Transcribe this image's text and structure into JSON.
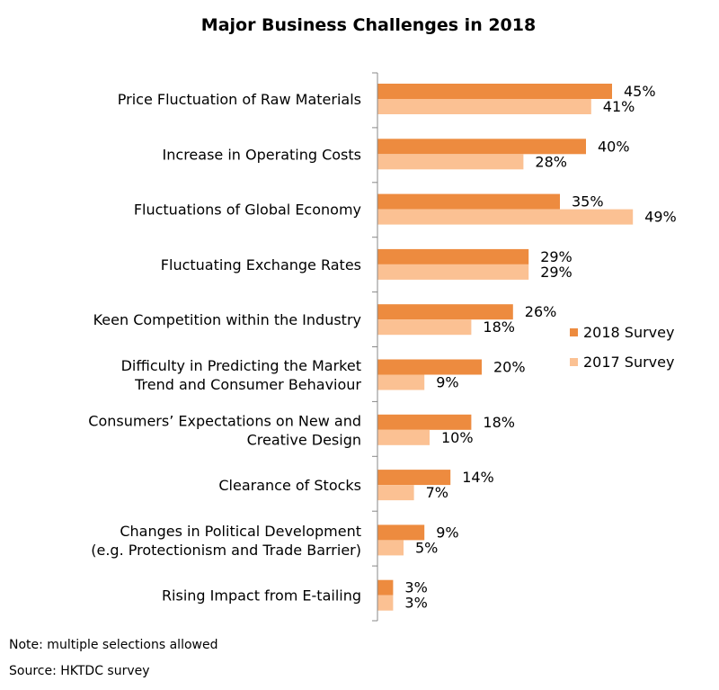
{
  "chart_data": {
    "type": "bar",
    "orientation": "horizontal",
    "title": "Major Business Challenges in 2018",
    "categories": [
      [
        "Price Fluctuation of Raw Materials"
      ],
      [
        "Increase in Operating Costs"
      ],
      [
        "Fluctuations of Global Economy"
      ],
      [
        "Fluctuating Exchange Rates"
      ],
      [
        "Keen Competition within the Industry"
      ],
      [
        "Difficulty in Predicting the Market",
        "Trend and Consumer Behaviour"
      ],
      [
        "Consumers’ Expectations on New and",
        "Creative Design"
      ],
      [
        "Clearance of Stocks"
      ],
      [
        "Changes in Political Development",
        "(e.g. Protectionism and Trade Barrier)"
      ],
      [
        "Rising Impact from E-tailing"
      ]
    ],
    "series": [
      {
        "name": "2018 Survey",
        "color": "#ED8B3F",
        "values": [
          45,
          40,
          35,
          29,
          26,
          20,
          18,
          14,
          9,
          3
        ]
      },
      {
        "name": "2017 Survey",
        "color": "#FBC193",
        "values": [
          41,
          28,
          49,
          29,
          18,
          9,
          10,
          7,
          5,
          3
        ]
      }
    ],
    "value_suffix": "%",
    "legend_position": "right",
    "grid": false
  },
  "notes": {
    "note": "Note: multiple selections allowed",
    "source": "Source: HKTDC survey"
  }
}
